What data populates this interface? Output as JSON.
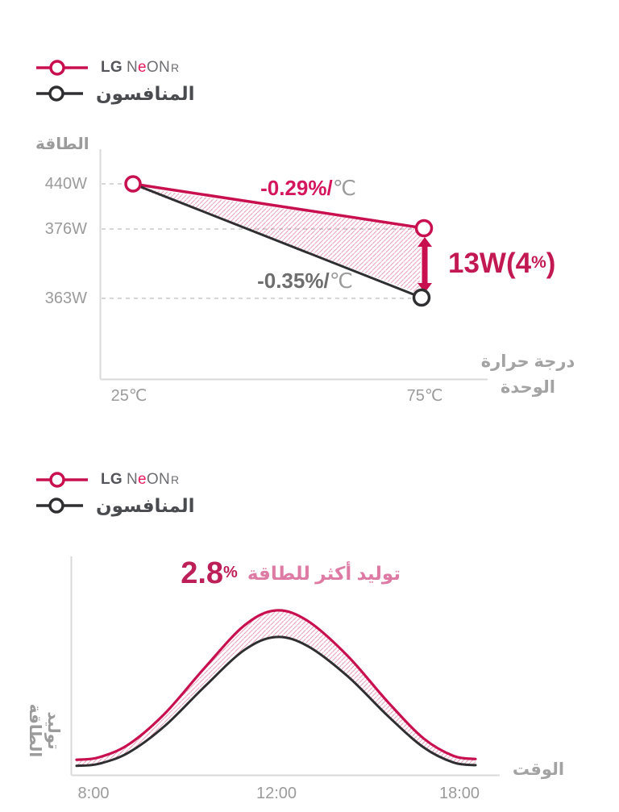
{
  "colors": {
    "accent": "#c8104e",
    "accent_text": "#c31952",
    "competitor": "#2f2f31",
    "tick_gray": "#9b9b9b",
    "axis_gray": "#d9d9d9",
    "annotation_value": "#bd2058",
    "annotation_text": "#dd7ba4"
  },
  "legend": {
    "lg_brand": "LG",
    "lg_model_pre": "N",
    "lg_model_accent": "e",
    "lg_model_post": "ON",
    "lg_model_suffix": "R",
    "competitor_label": "المنافسون"
  },
  "chart_data": [
    {
      "type": "line",
      "ylabel": "الطاقة",
      "xlabel": "درجة حرارة الوحدة",
      "xlabel_lines": [
        "درجة حرارة",
        "الوحدة"
      ],
      "x_ticks": [
        "25℃",
        "75℃"
      ],
      "y_ticks": [
        "440W",
        "376W",
        "363W"
      ],
      "series": [
        {
          "name": "LG NeON R",
          "color": "#c8104e",
          "points": [
            {
              "temp_c": 25,
              "power_w": 440
            },
            {
              "temp_c": 75,
              "power_w": 376
            }
          ],
          "rate_value": "-0.29%/",
          "rate_unit": "℃"
        },
        {
          "name": "المنافسون",
          "color": "#2f2f31",
          "points": [
            {
              "temp_c": 25,
              "power_w": 440
            },
            {
              "temp_c": 75,
              "power_w": 363
            }
          ],
          "rate_value": "-0.35%/",
          "rate_unit": "℃"
        }
      ],
      "difference": {
        "main": "13W(4",
        "percent": "%",
        "close": ")"
      }
    },
    {
      "type": "area",
      "ylabel": "توليد الطاقة",
      "xlabel": "الوقت",
      "x_ticks": [
        "8:00",
        "12:00",
        "18:00"
      ],
      "annotation": {
        "value": "2.8",
        "percent": "%",
        "text": "توليد أكثر للطاقة"
      },
      "curve": {
        "u": [
          0,
          0.055,
          0.13,
          0.22,
          0.32,
          0.42,
          0.5,
          0.58,
          0.68,
          0.78,
          0.87,
          0.945,
          1
        ],
        "v": [
          0.02,
          0.035,
          0.12,
          0.32,
          0.62,
          0.9,
          1,
          0.93,
          0.7,
          0.4,
          0.16,
          0.045,
          0.025
        ]
      },
      "series": [
        {
          "name": "LG NeON R",
          "color": "#c8104e"
        },
        {
          "name": "المنافسون",
          "color": "#2f2f31"
        }
      ]
    }
  ]
}
